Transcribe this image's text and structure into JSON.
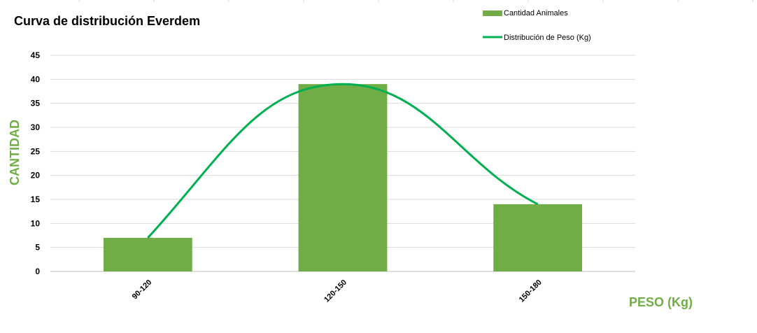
{
  "chart_data": {
    "type": "bar",
    "title": "Curva de distribución Everdem",
    "xlabel": "PESO (Kg)",
    "ylabel": "CANTIDAD",
    "categories": [
      "90-120",
      "120-150",
      "150-180"
    ],
    "series": [
      {
        "name": "Cantidad Animales",
        "type": "bar",
        "values": [
          7,
          39,
          14
        ],
        "color": "#70AD47"
      },
      {
        "name": "Distribución de Peso (Kg)",
        "type": "line",
        "values": [
          7,
          39,
          14
        ],
        "color": "#00B050",
        "smooth": true
      }
    ],
    "ylim": [
      0,
      45
    ],
    "yticks": [
      0,
      5,
      10,
      15,
      20,
      25,
      30,
      35,
      40,
      45
    ],
    "grid": true,
    "legend_position": "top-right",
    "axis_title_color": "#70AD47"
  }
}
